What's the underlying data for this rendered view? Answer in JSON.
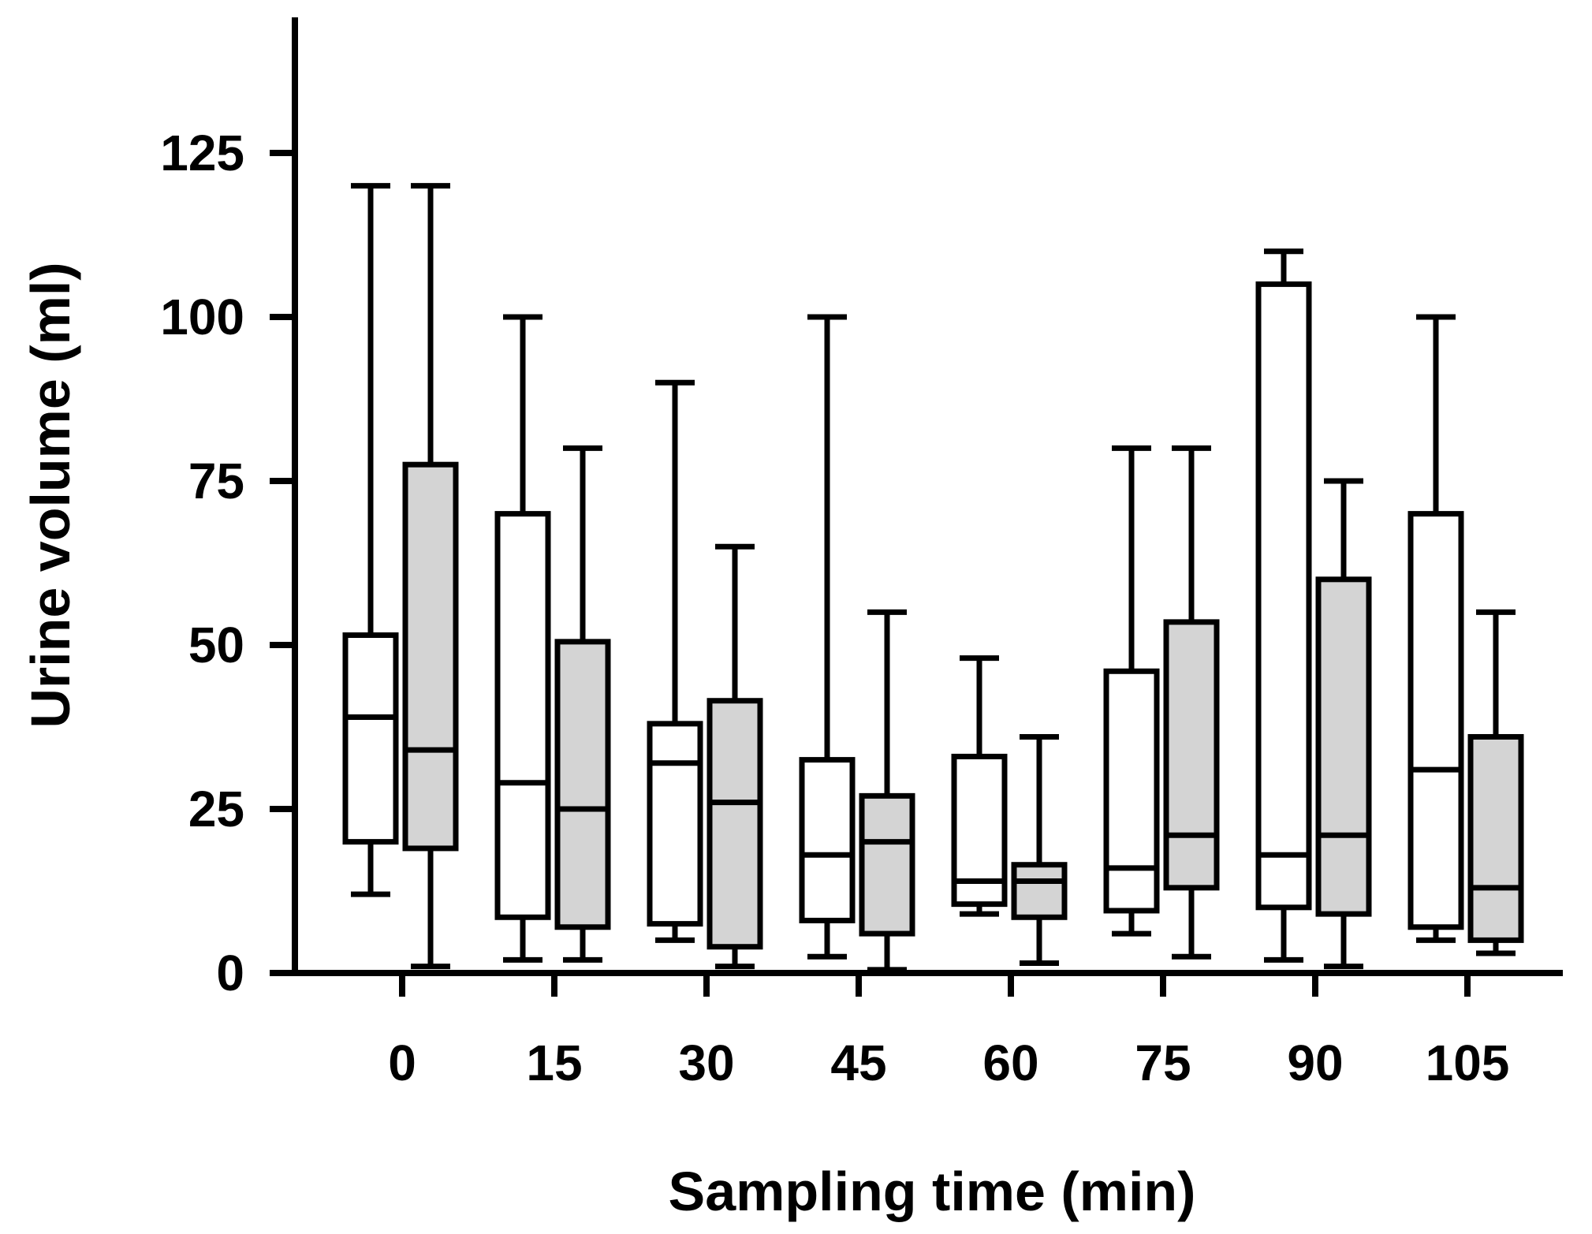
{
  "chart_data": {
    "type": "boxplot",
    "title": "",
    "xlabel": "Sampling time (min)",
    "ylabel": "Urine volume (ml)",
    "ylim": [
      0,
      145
    ],
    "yticks": [
      0,
      25,
      50,
      75,
      100,
      125
    ],
    "ytick_labels": [
      "0",
      "25",
      "50",
      "75",
      "100",
      "125"
    ],
    "categories": [
      "0",
      "15",
      "30",
      "45",
      "60",
      "75",
      "90",
      "105"
    ],
    "series": [
      {
        "name": "white",
        "fill": "#ffffff",
        "boxes": [
          {
            "min": 12,
            "q1": 20,
            "median": 39,
            "q3": 51.5,
            "max": 120
          },
          {
            "min": 2,
            "q1": 8.5,
            "median": 29,
            "q3": 70,
            "max": 100
          },
          {
            "min": 5,
            "q1": 7.5,
            "median": 32,
            "q3": 38,
            "max": 90
          },
          {
            "min": 2.5,
            "q1": 8,
            "median": 18,
            "q3": 32.5,
            "max": 100
          },
          {
            "min": 9,
            "q1": 10.5,
            "median": 14,
            "q3": 33,
            "max": 48
          },
          {
            "min": 6,
            "q1": 9.5,
            "median": 16,
            "q3": 46,
            "max": 80
          },
          {
            "min": 2,
            "q1": 10,
            "median": 18,
            "q3": 105,
            "max": 110
          },
          {
            "min": 5,
            "q1": 7,
            "median": 31,
            "q3": 70,
            "max": 100
          }
        ]
      },
      {
        "name": "grey",
        "fill": "#d4d4d4",
        "boxes": [
          {
            "min": 1,
            "q1": 19,
            "median": 34,
            "q3": 77.5,
            "max": 120
          },
          {
            "min": 2,
            "q1": 7,
            "median": 25,
            "q3": 50.5,
            "max": 80
          },
          {
            "min": 1,
            "q1": 4,
            "median": 26,
            "q3": 41.5,
            "max": 65
          },
          {
            "min": 0.5,
            "q1": 6,
            "median": 20,
            "q3": 27,
            "max": 55
          },
          {
            "min": 1.5,
            "q1": 8.5,
            "median": 14,
            "q3": 16.5,
            "max": 36
          },
          {
            "min": 2.5,
            "q1": 13,
            "median": 21,
            "q3": 53.5,
            "max": 80
          },
          {
            "min": 1,
            "q1": 9,
            "median": 21,
            "q3": 60,
            "max": 75
          },
          {
            "min": 3,
            "q1": 5,
            "median": 13,
            "q3": 36,
            "max": 55
          }
        ]
      }
    ]
  },
  "colors": {
    "axis": "#000000",
    "box_stroke": "#000000",
    "background": "#ffffff"
  }
}
